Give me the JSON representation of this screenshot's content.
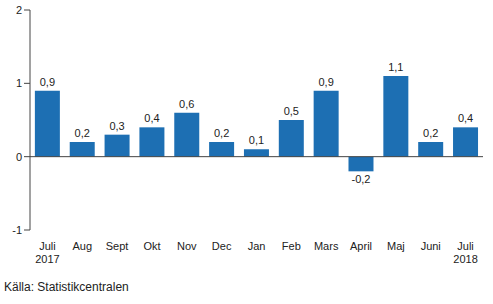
{
  "chart_data": {
    "type": "bar",
    "categories": [
      "Juli 2017",
      "Aug",
      "Sept",
      "Okt",
      "Nov",
      "Dec",
      "Jan",
      "Feb",
      "Mars",
      "April",
      "Maj",
      "Juni",
      "Juli 2018"
    ],
    "values": [
      0.9,
      0.2,
      0.3,
      0.4,
      0.6,
      0.2,
      0.1,
      0.5,
      0.9,
      -0.2,
      1.1,
      0.2,
      0.4
    ],
    "value_labels": [
      "0,9",
      "0,2",
      "0,3",
      "0,4",
      "0,6",
      "0,2",
      "0,1",
      "0,5",
      "0,9",
      "-0,2",
      "1,1",
      "0,2",
      "0,4"
    ],
    "color": "#1d6fb3",
    "ylim": [
      -1,
      2
    ],
    "yticks": [
      -1,
      0,
      1,
      2
    ],
    "grid": false,
    "data_labels": true,
    "annotation": "Källa: Statistikcentralen"
  }
}
